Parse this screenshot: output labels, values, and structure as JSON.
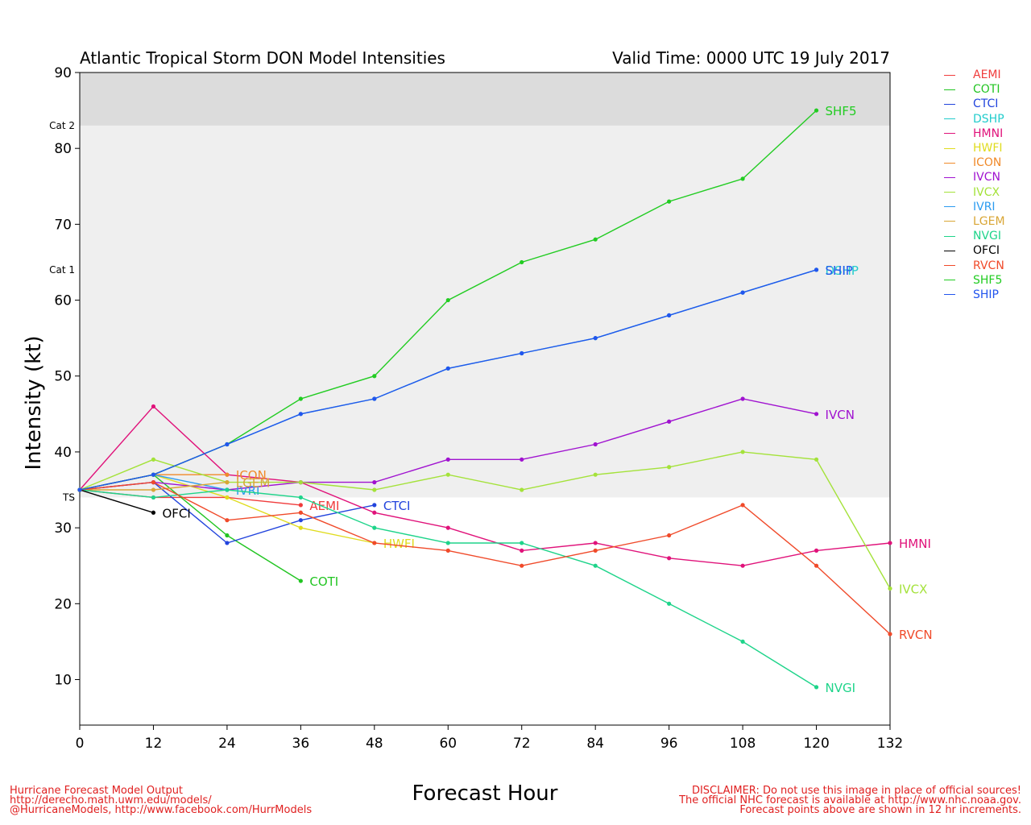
{
  "title": "Atlantic Tropical Storm DON Model Intensities",
  "valid_time": "Valid Time: 0000 UTC 19 July 2017",
  "footer_left": [
    "Hurricane Forecast Model Output",
    "http://derecho.math.uwm.edu/models/",
    "@HurricaneModels, http://www.facebook.com/HurrModels"
  ],
  "footer_right": [
    "DISCLAIMER: Do not use this image in place of official sources!",
    "The official NHC forecast is available at http://www.nhc.noaa.gov.",
    "Forecast points above are shown in 12 hr increments."
  ],
  "chart_data": {
    "type": "line",
    "xlabel": "Forecast Hour",
    "ylabel": "Intensity (kt)",
    "xlim": [
      0,
      132
    ],
    "ylim": [
      4,
      90
    ],
    "xticks": [
      0,
      12,
      24,
      36,
      48,
      60,
      72,
      84,
      96,
      108,
      120,
      132
    ],
    "yticks": [
      10,
      20,
      30,
      40,
      50,
      60,
      70,
      80,
      90
    ],
    "bands": [
      {
        "from": 83,
        "to": 90,
        "color": "#dcdcdc"
      },
      {
        "from": 34,
        "to": 83,
        "color": "#efefef"
      }
    ],
    "category_labels": [
      {
        "label": "Cat 2",
        "value": 83
      },
      {
        "label": "Cat 1",
        "value": 64
      },
      {
        "label": "TS",
        "value": 34
      }
    ],
    "legend_placement": "right, outside plot",
    "series": [
      {
        "name": "AEMI",
        "color": "#f03c3c",
        "x": [
          0,
          12,
          24,
          36
        ],
        "values": [
          35,
          34,
          34,
          33
        ]
      },
      {
        "name": "COTI",
        "color": "#22c522",
        "x": [
          0,
          12,
          24,
          36
        ],
        "values": [
          35,
          37,
          29,
          23
        ]
      },
      {
        "name": "CTCI",
        "color": "#2244dd",
        "x": [
          0,
          12,
          24,
          36,
          48
        ],
        "values": [
          35,
          36,
          28,
          31,
          33
        ]
      },
      {
        "name": "DSHP",
        "color": "#22cccc",
        "x": [
          0,
          12,
          24,
          36,
          48,
          60,
          72,
          84,
          96,
          108,
          120
        ],
        "values": [
          35,
          37,
          41,
          45,
          47,
          51,
          53,
          55,
          58,
          61,
          64
        ]
      },
      {
        "name": "HMNI",
        "color": "#e0127a",
        "x": [
          0,
          12,
          24,
          36,
          48,
          60,
          72,
          84,
          96,
          108,
          120,
          132
        ],
        "values": [
          35,
          46,
          37,
          36,
          32,
          30,
          27,
          28,
          26,
          25,
          27,
          28
        ]
      },
      {
        "name": "HWFI",
        "color": "#e0dc1e",
        "x": [
          0,
          12,
          24,
          36,
          48
        ],
        "values": [
          35,
          37,
          34,
          30,
          28
        ]
      },
      {
        "name": "ICON",
        "color": "#f08a2a",
        "x": [
          0,
          12,
          24
        ],
        "values": [
          35,
          37,
          37
        ]
      },
      {
        "name": "IVCN",
        "color": "#a012d0",
        "x": [
          0,
          12,
          24,
          36,
          48,
          60,
          72,
          84,
          96,
          108,
          120
        ],
        "values": [
          35,
          36,
          35,
          36,
          36,
          39,
          39,
          41,
          44,
          47,
          45
        ]
      },
      {
        "name": "IVCX",
        "color": "#a4e23a",
        "x": [
          0,
          12,
          24,
          36,
          48,
          60,
          72,
          84,
          96,
          108,
          120,
          132
        ],
        "values": [
          35,
          39,
          36,
          36,
          35,
          37,
          35,
          37,
          38,
          40,
          39,
          22
        ]
      },
      {
        "name": "IVRI",
        "color": "#2b9bf0",
        "x": [
          0,
          12,
          24
        ],
        "values": [
          35,
          37,
          35
        ]
      },
      {
        "name": "LGEM",
        "color": "#d9a636",
        "x": [
          0,
          12,
          24
        ],
        "values": [
          35,
          35,
          36
        ]
      },
      {
        "name": "NVGI",
        "color": "#1ed48a",
        "x": [
          0,
          12,
          24,
          36,
          48,
          60,
          72,
          84,
          96,
          108,
          120
        ],
        "values": [
          35,
          34,
          35,
          34,
          30,
          28,
          28,
          25,
          20,
          15,
          9
        ]
      },
      {
        "name": "OFCI",
        "color": "#000000",
        "x": [
          0,
          12
        ],
        "values": [
          35,
          32
        ]
      },
      {
        "name": "RVCN",
        "color": "#f04a2a",
        "x": [
          0,
          12,
          24,
          36,
          48,
          60,
          72,
          84,
          96,
          108,
          120,
          132
        ],
        "values": [
          35,
          36,
          31,
          32,
          28,
          27,
          25,
          27,
          29,
          33,
          25,
          16
        ]
      },
      {
        "name": "SHF5",
        "color": "#22cc22",
        "x": [
          0,
          12,
          24,
          36,
          48,
          60,
          72,
          84,
          96,
          108,
          120
        ],
        "values": [
          35,
          37,
          41,
          47,
          50,
          60,
          65,
          68,
          73,
          76,
          85
        ]
      },
      {
        "name": "SHIP",
        "color": "#2255ee",
        "x": [
          0,
          12,
          24,
          36,
          48,
          60,
          72,
          84,
          96,
          108,
          120
        ],
        "values": [
          35,
          37,
          41,
          45,
          47,
          51,
          53,
          55,
          58,
          61,
          64
        ]
      }
    ]
  }
}
